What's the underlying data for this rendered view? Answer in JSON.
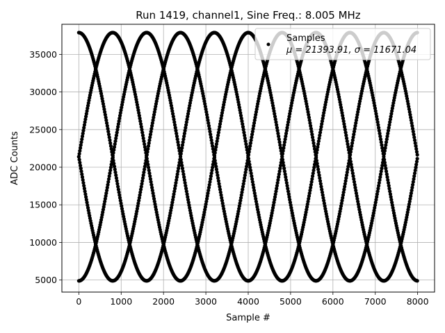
{
  "chart_data": {
    "type": "scatter",
    "title": "Run 1419, channel1, Sine Freq.: 8.005 MHz",
    "xlabel": "Sample #",
    "ylabel": "ADC Counts",
    "xlim": [
      -400,
      8400
    ],
    "ylim": [
      3400,
      39000
    ],
    "xticks": [
      0,
      1000,
      2000,
      3000,
      4000,
      5000,
      6000,
      7000,
      8000
    ],
    "yticks": [
      5000,
      10000,
      15000,
      20000,
      25000,
      30000,
      35000
    ],
    "grid": true,
    "legend_placement": "top-right",
    "series": [
      {
        "name": "Samples",
        "color": "#000000",
        "marker": "circle",
        "sampled_points": {
          "x_start": 0,
          "x_end": 8000,
          "mean": 21393.91,
          "amplitude": 16500,
          "period_samples": 3200,
          "phase_offsets_samples": [
            0,
            800,
            1600,
            2400
          ],
          "note_values": "four interleaved sinusoidal traces"
        }
      }
    ],
    "legend": {
      "label": "Samples",
      "stats": "μ = 21393.91, σ = 11671.04"
    }
  }
}
